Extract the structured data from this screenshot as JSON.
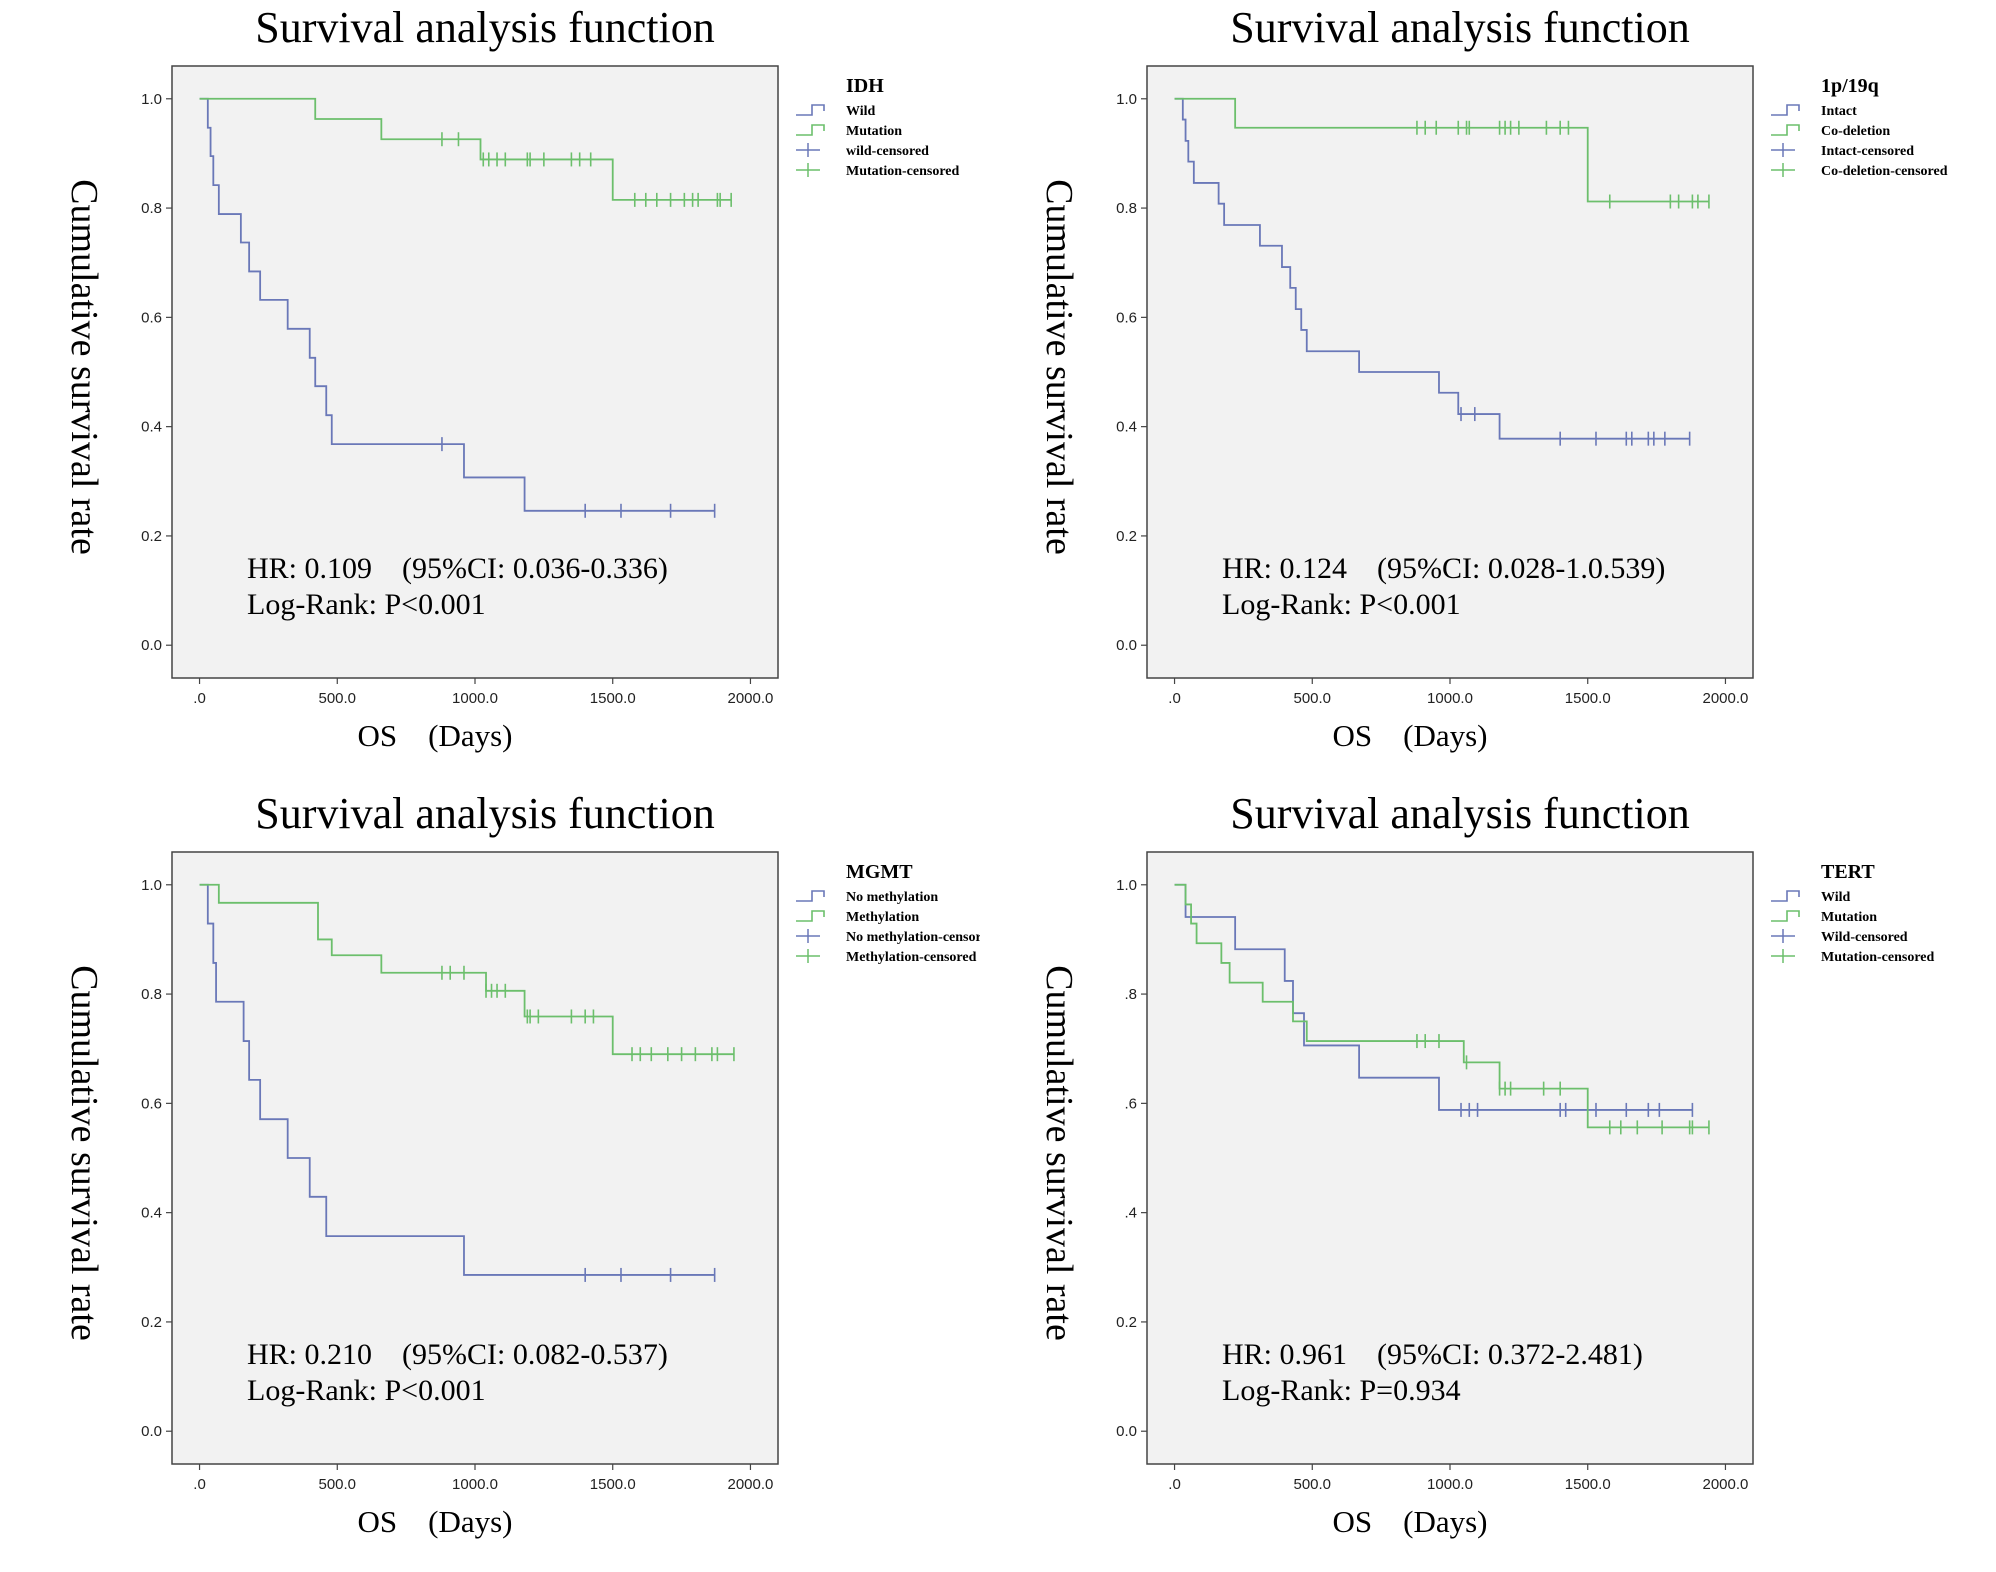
{
  "colors": {
    "wild": "#6a78b8",
    "mutation": "#6cbf6c",
    "plot_bg": "#f2f2f2",
    "frame": "#444444"
  },
  "chart_data": [
    {
      "type": "line",
      "subtype": "kaplan-meier",
      "title": "Survival analysis function",
      "xlabel": "OS　(Days)",
      "ylabel": "Cumulative survival rate",
      "xlim": [
        -100,
        2100
      ],
      "ylim": [
        -0.06,
        1.06
      ],
      "xticks": [
        0,
        500,
        1000,
        1500,
        2000
      ],
      "xtick_labels": [
        ".0",
        "500.0",
        "1000.0",
        "1500.0",
        "2000.0"
      ],
      "yticks": [
        0,
        0.2,
        0.4,
        0.6,
        0.8,
        1.0
      ],
      "ytick_labels": [
        "0.0",
        "0.2",
        "0.4",
        "0.6",
        "0.8",
        "1.0"
      ],
      "legend_title": "IDH",
      "legend_labels": [
        "Wild",
        "Mutation",
        "wild-censored",
        "Mutation-censored"
      ],
      "annotations": [
        "HR: 0.109　(95%CI: 0.036-0.336)",
        "Log-Rank: P<0.001"
      ],
      "series": [
        {
          "name": "Wild",
          "color_key": "wild",
          "steps": [
            [
              0,
              1.0
            ],
            [
              30,
              0.947
            ],
            [
              40,
              0.895
            ],
            [
              50,
              0.842
            ],
            [
              70,
              0.789
            ],
            [
              150,
              0.737
            ],
            [
              180,
              0.684
            ],
            [
              220,
              0.632
            ],
            [
              320,
              0.579
            ],
            [
              400,
              0.526
            ],
            [
              420,
              0.474
            ],
            [
              460,
              0.421
            ],
            [
              480,
              0.368
            ],
            [
              960,
              0.307
            ],
            [
              1180,
              0.246
            ]
          ],
          "end_x": 1870,
          "censored": [
            880,
            1400,
            1530,
            1710,
            1870
          ]
        },
        {
          "name": "Mutation",
          "color_key": "mutation",
          "steps": [
            [
              0,
              1.0
            ],
            [
              420,
              0.963
            ],
            [
              660,
              0.926
            ],
            [
              1020,
              0.889
            ],
            [
              1500,
              0.815
            ]
          ],
          "end_x": 1930,
          "censored": [
            880,
            940,
            1030,
            1050,
            1080,
            1110,
            1190,
            1200,
            1250,
            1350,
            1380,
            1420,
            1580,
            1620,
            1660,
            1710,
            1760,
            1790,
            1810,
            1880,
            1890,
            1930
          ]
        }
      ]
    },
    {
      "type": "line",
      "subtype": "kaplan-meier",
      "title": "Survival analysis function",
      "xlabel": "OS　(Days)",
      "ylabel": "Cumulative survival rate",
      "xlim": [
        -100,
        2100
      ],
      "ylim": [
        -0.06,
        1.06
      ],
      "xticks": [
        0,
        500,
        1000,
        1500,
        2000
      ],
      "xtick_labels": [
        ".0",
        "500.0",
        "1000.0",
        "1500.0",
        "2000.0"
      ],
      "yticks": [
        0,
        0.2,
        0.4,
        0.6,
        0.8,
        1.0
      ],
      "ytick_labels": [
        "0.0",
        "0.2",
        "0.4",
        "0.6",
        "0.8",
        "1.0"
      ],
      "legend_title": "1p/19q",
      "legend_labels": [
        "Intact",
        "Co-deletion",
        "Intact-censored",
        "Co-deletion-censored"
      ],
      "annotations": [
        "HR: 0.124　(95%CI: 0.028-1.0.539)",
        "Log-Rank: P<0.001"
      ],
      "series": [
        {
          "name": "Intact",
          "color_key": "wild",
          "steps": [
            [
              0,
              1.0
            ],
            [
              30,
              0.962
            ],
            [
              40,
              0.923
            ],
            [
              50,
              0.885
            ],
            [
              70,
              0.846
            ],
            [
              160,
              0.808
            ],
            [
              180,
              0.769
            ],
            [
              310,
              0.731
            ],
            [
              390,
              0.692
            ],
            [
              420,
              0.654
            ],
            [
              440,
              0.615
            ],
            [
              460,
              0.577
            ],
            [
              480,
              0.538
            ],
            [
              670,
              0.5
            ],
            [
              960,
              0.462
            ],
            [
              1030,
              0.423
            ],
            [
              1180,
              0.378
            ]
          ],
          "end_x": 1870,
          "censored": [
            1040,
            1090,
            1400,
            1530,
            1640,
            1660,
            1720,
            1740,
            1780,
            1870
          ]
        },
        {
          "name": "Co-deletion",
          "color_key": "mutation",
          "steps": [
            [
              0,
              1.0
            ],
            [
              220,
              0.947
            ],
            [
              1500,
              0.812
            ]
          ],
          "end_x": 1940,
          "censored": [
            880,
            910,
            950,
            1030,
            1060,
            1070,
            1180,
            1200,
            1220,
            1250,
            1350,
            1400,
            1430,
            1580,
            1800,
            1830,
            1880,
            1900,
            1940
          ]
        }
      ]
    },
    {
      "type": "line",
      "subtype": "kaplan-meier",
      "title": "Survival analysis function",
      "xlabel": "OS　(Days)",
      "ylabel": "Cumulative survival rate",
      "xlim": [
        -100,
        2100
      ],
      "ylim": [
        -0.06,
        1.06
      ],
      "xticks": [
        0,
        500,
        1000,
        1500,
        2000
      ],
      "xtick_labels": [
        ".0",
        "500.0",
        "1000.0",
        "1500.0",
        "2000.0"
      ],
      "yticks": [
        0,
        0.2,
        0.4,
        0.6,
        0.8,
        1.0
      ],
      "ytick_labels": [
        "0.0",
        "0.2",
        "0.4",
        "0.6",
        "0.8",
        "1.0"
      ],
      "legend_title": "MGMT",
      "legend_labels": [
        "No methylation",
        "Methylation",
        "No methylation-censored",
        "Methylation-censored"
      ],
      "annotations": [
        "HR: 0.210　(95%CI: 0.082-0.537)",
        "Log-Rank: P<0.001"
      ],
      "series": [
        {
          "name": "No methylation",
          "color_key": "wild",
          "steps": [
            [
              0,
              1.0
            ],
            [
              30,
              0.929
            ],
            [
              50,
              0.857
            ],
            [
              60,
              0.786
            ],
            [
              160,
              0.714
            ],
            [
              180,
              0.643
            ],
            [
              220,
              0.571
            ],
            [
              320,
              0.5
            ],
            [
              400,
              0.429
            ],
            [
              460,
              0.357
            ],
            [
              960,
              0.286
            ]
          ],
          "end_x": 1870,
          "censored": [
            1400,
            1530,
            1710,
            1870
          ]
        },
        {
          "name": "Methylation",
          "color_key": "mutation",
          "steps": [
            [
              0,
              1.0
            ],
            [
              70,
              0.967
            ],
            [
              430,
              0.9
            ],
            [
              480,
              0.871
            ],
            [
              660,
              0.839
            ],
            [
              1040,
              0.806
            ],
            [
              1180,
              0.759
            ],
            [
              1500,
              0.69
            ]
          ],
          "end_x": 1940,
          "censored": [
            880,
            910,
            960,
            1040,
            1060,
            1080,
            1110,
            1190,
            1200,
            1230,
            1350,
            1400,
            1430,
            1570,
            1600,
            1640,
            1700,
            1750,
            1800,
            1860,
            1880,
            1940
          ]
        }
      ]
    },
    {
      "type": "line",
      "subtype": "kaplan-meier",
      "title": "Survival analysis function",
      "xlabel": "OS　(Days)",
      "ylabel": "Cumulative survival rate",
      "xlim": [
        -100,
        2100
      ],
      "ylim": [
        -0.06,
        1.06
      ],
      "xticks": [
        0,
        500,
        1000,
        1500,
        2000
      ],
      "xtick_labels": [
        ".0",
        "500.0",
        "1000.0",
        "1500.0",
        "2000.0"
      ],
      "yticks": [
        0,
        0.2,
        0.4,
        0.6,
        0.8,
        1.0
      ],
      "ytick_labels": [
        "0.0",
        "0.2",
        ".4",
        ".6",
        ".8",
        "1.0"
      ],
      "legend_title": "TERT",
      "legend_labels": [
        "Wild",
        "Mutation",
        "Wild-censored",
        "Mutation-censored"
      ],
      "annotations": [
        "HR: 0.961　(95%CI: 0.372-2.481)",
        "Log-Rank: P=0.934"
      ],
      "series": [
        {
          "name": "Wild",
          "color_key": "wild",
          "steps": [
            [
              0,
              1.0
            ],
            [
              40,
              0.941
            ],
            [
              220,
              0.882
            ],
            [
              400,
              0.824
            ],
            [
              430,
              0.765
            ],
            [
              470,
              0.706
            ],
            [
              670,
              0.647
            ],
            [
              960,
              0.588
            ]
          ],
          "end_x": 1880,
          "censored": [
            1040,
            1070,
            1100,
            1400,
            1420,
            1530,
            1640,
            1720,
            1760,
            1880
          ]
        },
        {
          "name": "Mutation",
          "color_key": "mutation",
          "steps": [
            [
              0,
              1.0
            ],
            [
              40,
              0.964
            ],
            [
              60,
              0.929
            ],
            [
              80,
              0.893
            ],
            [
              170,
              0.857
            ],
            [
              200,
              0.821
            ],
            [
              320,
              0.786
            ],
            [
              430,
              0.75
            ],
            [
              480,
              0.714
            ],
            [
              1050,
              0.675
            ],
            [
              1180,
              0.627
            ],
            [
              1500,
              0.556
            ]
          ],
          "end_x": 1940,
          "censored": [
            880,
            910,
            960,
            1060,
            1180,
            1200,
            1220,
            1340,
            1400,
            1580,
            1620,
            1680,
            1770,
            1870,
            1880,
            1940
          ]
        }
      ]
    }
  ]
}
